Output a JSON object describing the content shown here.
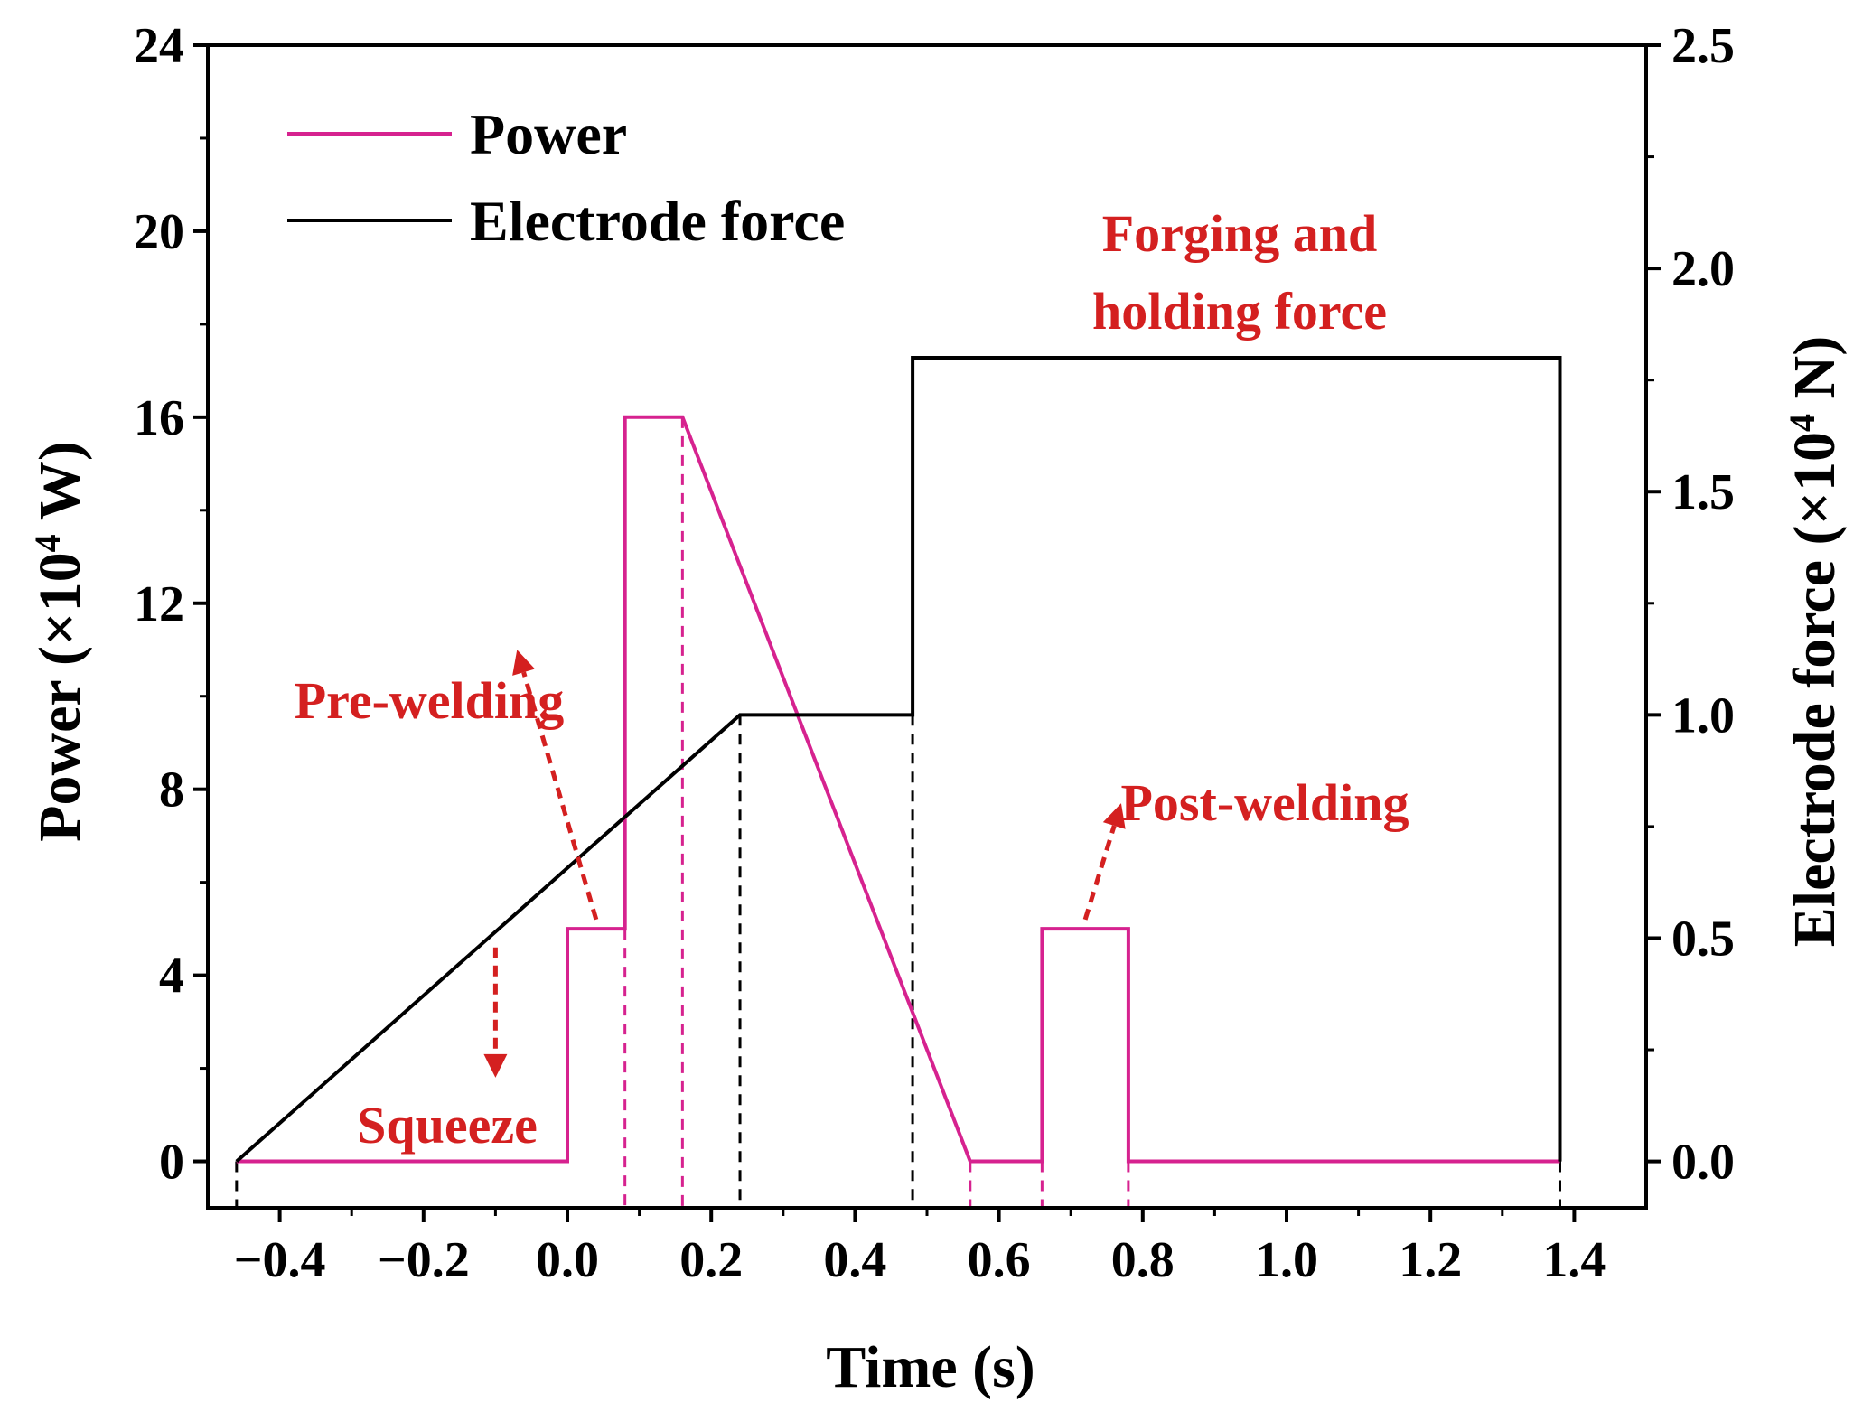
{
  "chart_data": {
    "type": "line",
    "xlabel": "Time (s)",
    "ylabel": {
      "pre": "Power (×10",
      "sup": "4",
      "post": " W)"
    },
    "y2label": {
      "pre": "Electrode force (×10",
      "sup": "4",
      "post": " N)"
    },
    "xlim": [
      -0.5,
      1.5
    ],
    "ylim": [
      -1,
      24
    ],
    "y2lim": [
      -0.104,
      2.5
    ],
    "xticks": [
      -0.4,
      -0.2,
      0.0,
      0.2,
      0.4,
      0.6,
      0.8,
      1.0,
      1.2,
      1.4
    ],
    "xtick_labels": [
      "−0.4",
      "−0.2",
      "0.0",
      "0.2",
      "0.4",
      "0.6",
      "0.8",
      "1.0",
      "1.2",
      "1.4"
    ],
    "yticks": [
      0,
      4,
      8,
      12,
      16,
      20,
      24
    ],
    "ytick_labels": [
      "0",
      "4",
      "8",
      "12",
      "16",
      "20",
      "24"
    ],
    "y2ticks": [
      0.0,
      0.5,
      1.0,
      1.5,
      2.0,
      2.5
    ],
    "y2tick_labels": [
      "0.0",
      "0.5",
      "1.0",
      "1.5",
      "2.0",
      "2.5"
    ],
    "grid": false,
    "legend_position": "top-left",
    "series": [
      {
        "name": "Power",
        "color": "#d6228f",
        "axis": "left",
        "x": [
          -0.46,
          0.0,
          0.0,
          0.08,
          0.08,
          0.16,
          0.56,
          0.66,
          0.66,
          0.78,
          0.78,
          1.38
        ],
        "y": [
          0,
          0,
          5,
          5,
          16,
          16,
          0,
          0,
          5,
          5,
          0,
          0
        ]
      },
      {
        "name": "Electrode force",
        "color": "#000000",
        "axis": "right",
        "x": [
          -0.46,
          0.24,
          0.48,
          0.48,
          1.38,
          1.38
        ],
        "y": [
          0.0,
          1.0,
          1.0,
          1.8,
          1.8,
          0.0
        ]
      }
    ],
    "dashed_markers": [
      {
        "x": -0.46,
        "y_top": 0,
        "color": "#000000"
      },
      {
        "x": 0.08,
        "y_top": 5,
        "color": "#d6228f"
      },
      {
        "x": 0.16,
        "y_top": 16,
        "color": "#d6228f"
      },
      {
        "x": 0.24,
        "y_top": 9.6,
        "color": "#000000"
      },
      {
        "x": 0.48,
        "y_top": 9.6,
        "color": "#000000"
      },
      {
        "x": 0.56,
        "y_top": 0,
        "color": "#d6228f"
      },
      {
        "x": 0.66,
        "y_top": 0,
        "color": "#d6228f"
      },
      {
        "x": 0.78,
        "y_top": 0,
        "color": "#d6228f"
      },
      {
        "x": 1.38,
        "y_top": 0,
        "color": "#000000"
      }
    ],
    "annotations": [
      {
        "text": "Squeeze",
        "x": -0.17,
        "y": 1.4,
        "arrow_from": [
          -0.1,
          4.6
        ],
        "arrow_to": [
          -0.1,
          1.8
        ]
      },
      {
        "text": "Pre-welding",
        "x": -0.18,
        "y": 12.3,
        "arrow_from": [
          0.04,
          5.2
        ],
        "arrow_to": [
          -0.07,
          11.0
        ]
      },
      {
        "text": "Post-welding",
        "x": 0.94,
        "y": 18.5,
        "arrow_from": [
          0.72,
          5.2
        ],
        "arrow_to": [
          0.77,
          7.7
        ]
      },
      {
        "text": "Forging and",
        "x": 0.94,
        "y": 18.5
      },
      {
        "text": "holding force",
        "x": 0.94,
        "y": 17.7
      }
    ]
  },
  "annotation_color": "#d42020"
}
